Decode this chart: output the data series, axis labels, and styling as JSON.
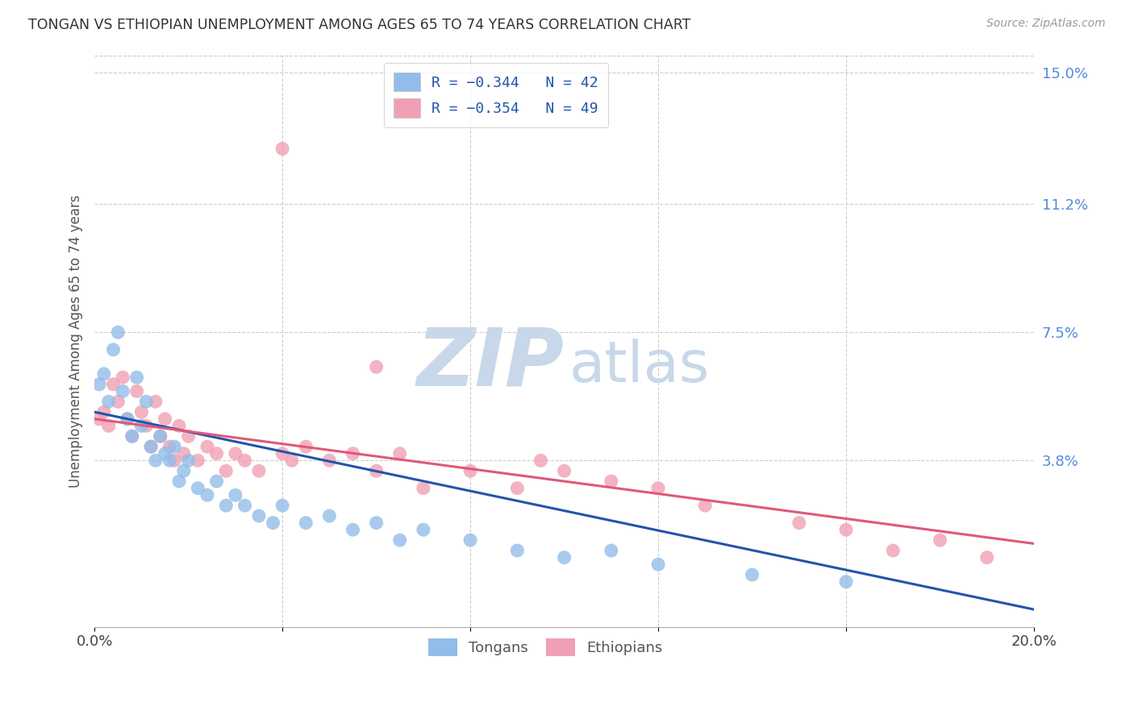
{
  "title": "TONGAN VS ETHIOPIAN UNEMPLOYMENT AMONG AGES 65 TO 74 YEARS CORRELATION CHART",
  "source": "Source: ZipAtlas.com",
  "ylabel": "Unemployment Among Ages 65 to 74 years",
  "xlim": [
    0.0,
    0.2
  ],
  "ylim": [
    -0.01,
    0.155
  ],
  "plot_ylim": [
    0.0,
    0.155
  ],
  "right_yticks": [
    0.038,
    0.075,
    0.112,
    0.15
  ],
  "right_yticklabels": [
    "3.8%",
    "7.5%",
    "11.2%",
    "15.0%"
  ],
  "tongan_color": "#92bde8",
  "ethiopian_color": "#f0a0b4",
  "tongan_line_color": "#2255aa",
  "ethiopian_line_color": "#e05878",
  "watermark_zip_color": "#c8d8ea",
  "watermark_atlas_color": "#c8d8ea",
  "background_color": "#ffffff",
  "grid_color": "#cccccc",
  "right_axis_color": "#5588dd",
  "tongan_x": [
    0.001,
    0.002,
    0.003,
    0.004,
    0.005,
    0.006,
    0.007,
    0.008,
    0.009,
    0.01,
    0.011,
    0.012,
    0.013,
    0.014,
    0.015,
    0.016,
    0.017,
    0.018,
    0.019,
    0.02,
    0.022,
    0.024,
    0.026,
    0.028,
    0.03,
    0.032,
    0.035,
    0.038,
    0.04,
    0.045,
    0.05,
    0.055,
    0.06,
    0.065,
    0.07,
    0.08,
    0.09,
    0.1,
    0.11,
    0.12,
    0.14,
    0.16
  ],
  "tongan_y": [
    0.06,
    0.063,
    0.055,
    0.07,
    0.075,
    0.058,
    0.05,
    0.045,
    0.062,
    0.048,
    0.055,
    0.042,
    0.038,
    0.045,
    0.04,
    0.038,
    0.042,
    0.032,
    0.035,
    0.038,
    0.03,
    0.028,
    0.032,
    0.025,
    0.028,
    0.025,
    0.022,
    0.02,
    0.025,
    0.02,
    0.022,
    0.018,
    0.02,
    0.015,
    0.018,
    0.015,
    0.012,
    0.01,
    0.012,
    0.008,
    0.005,
    0.003
  ],
  "ethiopian_x": [
    0.001,
    0.002,
    0.003,
    0.004,
    0.005,
    0.006,
    0.007,
    0.008,
    0.009,
    0.01,
    0.011,
    0.012,
    0.013,
    0.014,
    0.015,
    0.016,
    0.017,
    0.018,
    0.019,
    0.02,
    0.022,
    0.024,
    0.026,
    0.028,
    0.03,
    0.032,
    0.035,
    0.04,
    0.042,
    0.045,
    0.05,
    0.055,
    0.06,
    0.065,
    0.07,
    0.08,
    0.09,
    0.1,
    0.11,
    0.13,
    0.15,
    0.16,
    0.18,
    0.19,
    0.04,
    0.06,
    0.095,
    0.12,
    0.17
  ],
  "ethiopian_y": [
    0.05,
    0.052,
    0.048,
    0.06,
    0.055,
    0.062,
    0.05,
    0.045,
    0.058,
    0.052,
    0.048,
    0.042,
    0.055,
    0.045,
    0.05,
    0.042,
    0.038,
    0.048,
    0.04,
    0.045,
    0.038,
    0.042,
    0.04,
    0.035,
    0.04,
    0.038,
    0.035,
    0.04,
    0.038,
    0.042,
    0.038,
    0.04,
    0.035,
    0.04,
    0.03,
    0.035,
    0.03,
    0.035,
    0.032,
    0.025,
    0.02,
    0.018,
    0.015,
    0.01,
    0.128,
    0.065,
    0.038,
    0.03,
    0.012
  ],
  "tongan_line_x0": 0.0,
  "tongan_line_y0": 0.052,
  "tongan_line_x1": 0.2,
  "tongan_line_y1": -0.005,
  "ethiopian_line_x0": 0.0,
  "ethiopian_line_y0": 0.05,
  "ethiopian_line_x1": 0.2,
  "ethiopian_line_y1": 0.014
}
